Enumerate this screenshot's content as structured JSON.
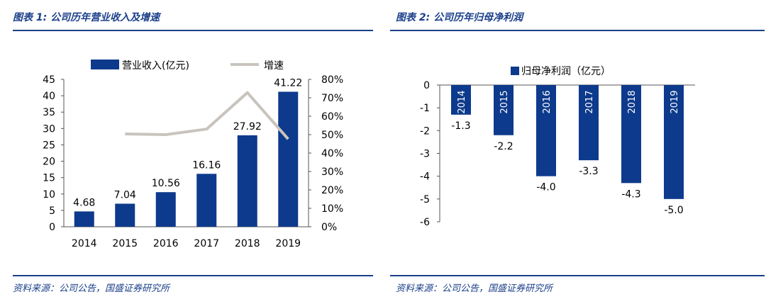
{
  "charts": [
    {
      "figure_title": "图表 1:  公司历年营业收入及增速",
      "source": "资料来源：公司公告，国盛证券研究所",
      "legend": {
        "bar": "营业收入(亿元)",
        "line": "增速"
      },
      "colors": {
        "bar": "#0d3a8c",
        "line": "#c8c4bd",
        "rule": "#1a3f8a"
      }
    },
    {
      "figure_title": "图表 2:  公司历年归母净利润",
      "source": "资料来源：公司公告，国盛证券研究所",
      "legend": {
        "bar": "归母净利润（亿元）"
      },
      "colors": {
        "bar": "#0d3a8c",
        "rule": "#1a3f8a"
      }
    }
  ],
  "chart_data": [
    {
      "type": "bar",
      "categories": [
        "2014",
        "2015",
        "2016",
        "2017",
        "2018",
        "2019"
      ],
      "series": [
        {
          "name": "营业收入(亿元)",
          "type": "bar",
          "axis": "left",
          "values": [
            4.68,
            7.04,
            10.56,
            16.16,
            27.92,
            41.22
          ],
          "labels": [
            "4.68",
            "7.04",
            "10.56",
            "16.16",
            "27.92",
            "41.22"
          ]
        },
        {
          "name": "增速",
          "type": "line",
          "axis": "right",
          "values": [
            null,
            50.4,
            50.0,
            53.0,
            72.8,
            47.6
          ]
        }
      ],
      "ylim": [
        0,
        45
      ],
      "yticks": [
        "0",
        "5",
        "10",
        "15",
        "20",
        "25",
        "30",
        "35",
        "40",
        "45"
      ],
      "y2lim": [
        0,
        80
      ],
      "y2ticks": [
        "0%",
        "10%",
        "20%",
        "30%",
        "40%",
        "50%",
        "60%",
        "70%",
        "80%"
      ],
      "legend_position": "top",
      "grid": false
    },
    {
      "type": "bar",
      "categories": [
        "2014",
        "2015",
        "2016",
        "2017",
        "2018",
        "2019"
      ],
      "series": [
        {
          "name": "归母净利润（亿元）",
          "values": [
            -1.3,
            -2.2,
            -4.0,
            -3.3,
            -4.3,
            -5.0
          ],
          "labels": [
            "-1.3",
            "-2.2",
            "-4.0",
            "-3.3",
            "-4.3",
            "-5.0"
          ]
        }
      ],
      "ylim": [
        -6,
        0
      ],
      "yticks": [
        "0",
        "-1",
        "-2",
        "-3",
        "-4",
        "-5",
        "-6"
      ],
      "legend_position": "top",
      "category_labels_rotated": true,
      "grid": false
    }
  ]
}
